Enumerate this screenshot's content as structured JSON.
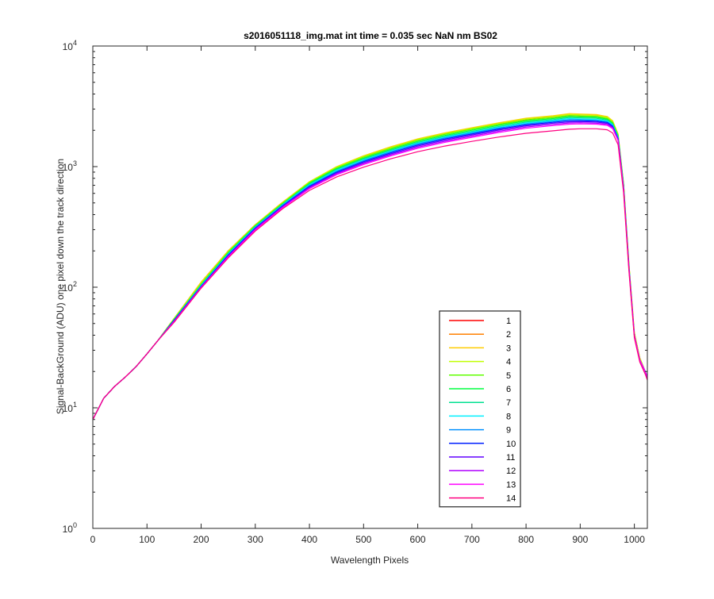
{
  "chart_data": {
    "type": "line",
    "title": "s2016051118_img.mat int time = 0.035 sec  NaN nm BS02",
    "xlabel": "Wavelength Pixels",
    "ylabel": "Signal-BackGround (ADU) one pixel down the track direction",
    "xlim": [
      0,
      1024
    ],
    "ylim": [
      1,
      10000
    ],
    "y_scale": "log",
    "grid": false,
    "legend_position": "lower-right",
    "x_ticks": [
      {
        "value": 0,
        "label": "0"
      },
      {
        "value": 100,
        "label": "100"
      },
      {
        "value": 200,
        "label": "200"
      },
      {
        "value": 300,
        "label": "300"
      },
      {
        "value": 400,
        "label": "400"
      },
      {
        "value": 500,
        "label": "500"
      },
      {
        "value": 600,
        "label": "600"
      },
      {
        "value": 700,
        "label": "700"
      },
      {
        "value": 800,
        "label": "800"
      },
      {
        "value": 900,
        "label": "900"
      },
      {
        "value": 1000,
        "label": "1000"
      }
    ],
    "y_ticks": [
      {
        "value": 1,
        "base": "10",
        "exp": "0"
      },
      {
        "value": 10,
        "base": "10",
        "exp": "1"
      },
      {
        "value": 100,
        "base": "10",
        "exp": "2"
      },
      {
        "value": 1000,
        "base": "10",
        "exp": "3"
      },
      {
        "value": 10000,
        "base": "10",
        "exp": "4"
      }
    ],
    "x": [
      0,
      20,
      40,
      60,
      80,
      100,
      120,
      150,
      200,
      250,
      300,
      350,
      400,
      450,
      500,
      550,
      600,
      650,
      700,
      750,
      800,
      850,
      880,
      900,
      930,
      950,
      960,
      970,
      980,
      990,
      1000,
      1010,
      1020,
      1024
    ],
    "series": [
      {
        "name": "1",
        "color": "#ff0000",
        "values": [
          8,
          12,
          15,
          18,
          22,
          28,
          36,
          55,
          110,
          200,
          330,
          500,
          740,
          980,
          1200,
          1420,
          1660,
          1860,
          2050,
          2250,
          2450,
          2550,
          2650,
          2620,
          2600,
          2500,
          2300,
          1800,
          700,
          150,
          40,
          25,
          20,
          18
        ]
      },
      {
        "name": "2",
        "color": "#ff8000",
        "values": [
          8,
          12,
          15,
          18,
          22,
          28,
          36,
          55,
          110,
          200,
          330,
          505,
          745,
          990,
          1215,
          1440,
          1680,
          1885,
          2080,
          2285,
          2490,
          2600,
          2700,
          2680,
          2660,
          2560,
          2360,
          1840,
          720,
          155,
          42,
          26,
          20,
          18
        ]
      },
      {
        "name": "3",
        "color": "#ffcc00",
        "values": [
          8,
          12,
          15,
          18,
          22,
          28,
          36,
          55,
          110,
          200,
          330,
          505,
          750,
          1000,
          1230,
          1460,
          1700,
          1905,
          2100,
          2310,
          2520,
          2640,
          2750,
          2730,
          2700,
          2600,
          2400,
          1870,
          730,
          155,
          42,
          26,
          20,
          18
        ]
      },
      {
        "name": "4",
        "color": "#c0ff00",
        "values": [
          8,
          12,
          15,
          18,
          22,
          28,
          36,
          55,
          108,
          198,
          328,
          500,
          745,
          990,
          1215,
          1440,
          1680,
          1880,
          2070,
          2280,
          2480,
          2600,
          2700,
          2680,
          2650,
          2560,
          2360,
          1840,
          720,
          155,
          42,
          26,
          20,
          18
        ]
      },
      {
        "name": "5",
        "color": "#60ff00",
        "values": [
          8,
          12,
          15,
          18,
          22,
          28,
          36,
          54,
          106,
          195,
          325,
          495,
          735,
          975,
          1195,
          1415,
          1650,
          1850,
          2040,
          2240,
          2430,
          2550,
          2650,
          2630,
          2600,
          2510,
          2320,
          1810,
          710,
          150,
          40,
          25,
          20,
          18
        ]
      },
      {
        "name": "6",
        "color": "#00ff40",
        "values": [
          8,
          12,
          15,
          18,
          22,
          28,
          36,
          54,
          105,
          193,
          322,
          490,
          725,
          960,
          1175,
          1390,
          1620,
          1815,
          2000,
          2200,
          2390,
          2500,
          2600,
          2580,
          2560,
          2470,
          2290,
          1790,
          700,
          150,
          40,
          25,
          20,
          18
        ]
      },
      {
        "name": "7",
        "color": "#00e090",
        "values": [
          8,
          12,
          15,
          18,
          22,
          28,
          36,
          54,
          104,
          190,
          318,
          485,
          715,
          945,
          1155,
          1365,
          1590,
          1780,
          1960,
          2150,
          2340,
          2450,
          2550,
          2530,
          2510,
          2430,
          2250,
          1760,
          690,
          148,
          40,
          25,
          20,
          18
        ]
      },
      {
        "name": "8",
        "color": "#00f0ff",
        "values": [
          8,
          12,
          15,
          18,
          22,
          28,
          36,
          53,
          103,
          188,
          315,
          480,
          705,
          930,
          1140,
          1345,
          1565,
          1755,
          1930,
          2120,
          2300,
          2410,
          2500,
          2480,
          2460,
          2390,
          2220,
          1740,
          680,
          146,
          40,
          25,
          20,
          18
        ]
      },
      {
        "name": "9",
        "color": "#0090ff",
        "values": [
          8,
          12,
          15,
          18,
          22,
          28,
          36,
          53,
          102,
          186,
          312,
          475,
          695,
          915,
          1120,
          1325,
          1540,
          1725,
          1900,
          2085,
          2260,
          2370,
          2450,
          2440,
          2420,
          2350,
          2190,
          1720,
          670,
          145,
          40,
          25,
          20,
          18
        ]
      },
      {
        "name": "10",
        "color": "#0020ff",
        "values": [
          8,
          12,
          15,
          18,
          22,
          28,
          36,
          53,
          101,
          184,
          308,
          470,
          685,
          900,
          1100,
          1300,
          1510,
          1695,
          1865,
          2050,
          2220,
          2330,
          2400,
          2400,
          2380,
          2320,
          2160,
          1700,
          665,
          145,
          40,
          25,
          20,
          18
        ]
      },
      {
        "name": "11",
        "color": "#6000ff",
        "values": [
          8,
          12,
          15,
          18,
          22,
          28,
          36,
          52,
          100,
          182,
          305,
          465,
          675,
          885,
          1080,
          1275,
          1480,
          1660,
          1830,
          2010,
          2180,
          2290,
          2350,
          2360,
          2340,
          2280,
          2130,
          1680,
          660,
          144,
          40,
          25,
          20,
          18
        ]
      },
      {
        "name": "12",
        "color": "#b000ff",
        "values": [
          8,
          12,
          15,
          18,
          22,
          28,
          36,
          52,
          100,
          180,
          302,
          460,
          665,
          870,
          1060,
          1250,
          1450,
          1625,
          1790,
          1965,
          2130,
          2240,
          2300,
          2310,
          2290,
          2240,
          2100,
          1660,
          655,
          143,
          40,
          25,
          20,
          18
        ]
      },
      {
        "name": "13",
        "color": "#ff00ff",
        "values": [
          8,
          12,
          15,
          18,
          22,
          28,
          36,
          52,
          99,
          178,
          298,
          455,
          655,
          855,
          1040,
          1225,
          1420,
          1590,
          1750,
          1920,
          2080,
          2190,
          2250,
          2260,
          2250,
          2200,
          2060,
          1640,
          650,
          142,
          40,
          25,
          20,
          18
        ]
      },
      {
        "name": "14",
        "color": "#ff0080",
        "values": [
          8,
          12,
          15,
          18,
          22,
          28,
          36,
          51,
          98,
          175,
          292,
          445,
          635,
          820,
          990,
          1160,
          1330,
          1480,
          1620,
          1760,
          1890,
          1980,
          2040,
          2060,
          2060,
          2020,
          1900,
          1520,
          610,
          135,
          38,
          24,
          19,
          17
        ]
      }
    ]
  }
}
